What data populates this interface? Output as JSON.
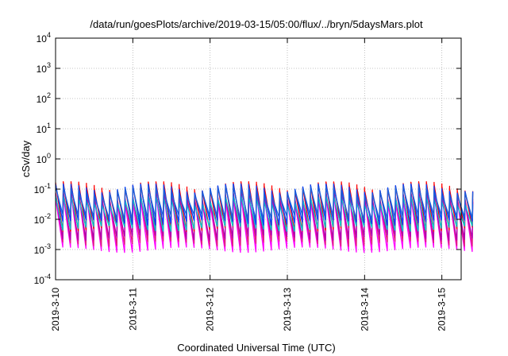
{
  "chart_data": {
    "type": "line",
    "title": "/data/run/goesPlots/archive/2019-03-15/05:00/flux/../bryn/5daysMars.plot",
    "xlabel": "Coordinated Universal Time (UTC)",
    "ylabel": "cSv/day",
    "x_range": [
      "2019-03-10T00:00",
      "2019-03-15T06:00"
    ],
    "x_ticks": [
      "2019-3-10",
      "2019-3-11",
      "2019-3-12",
      "2019-3-13",
      "2019-3-14",
      "2019-3-15"
    ],
    "y_scale": "log",
    "ylim": [
      0.0001,
      10000
    ],
    "y_ticks": [
      {
        "value": 0.0001,
        "mantissa": "10",
        "exponent": "-4"
      },
      {
        "value": 0.001,
        "mantissa": "10",
        "exponent": "-3"
      },
      {
        "value": 0.01,
        "mantissa": "10",
        "exponent": "-2"
      },
      {
        "value": 0.1,
        "mantissa": "10",
        "exponent": "-1"
      },
      {
        "value": 1,
        "mantissa": "10",
        "exponent": "0"
      },
      {
        "value": 10,
        "mantissa": "10",
        "exponent": "1"
      },
      {
        "value": 100,
        "mantissa": "10",
        "exponent": "2"
      },
      {
        "value": 1000,
        "mantissa": "10",
        "exponent": "3"
      },
      {
        "value": 10000,
        "mantissa": "10",
        "exponent": "4"
      }
    ],
    "grid": true,
    "pattern": "sawtooth",
    "cycles_per_day": 10,
    "series": [
      {
        "color": "#ff00ff",
        "peak": 0.05,
        "trough": 0.001
      },
      {
        "color": "#e0207a",
        "peak": 0.07,
        "trough": 0.0016
      },
      {
        "color": "#b000b0",
        "peak": 0.06,
        "trough": 0.0025
      },
      {
        "color": "#ff0000",
        "peak": 0.13,
        "trough": 0.005
      },
      {
        "color": "#00cccc",
        "peak": 0.045,
        "trough": 0.005
      },
      {
        "color": "#0044ff",
        "peak": 0.11,
        "trough": 0.008
      },
      {
        "color": "#1e60d8",
        "peak": 0.09,
        "trough": 0.012
      }
    ]
  }
}
